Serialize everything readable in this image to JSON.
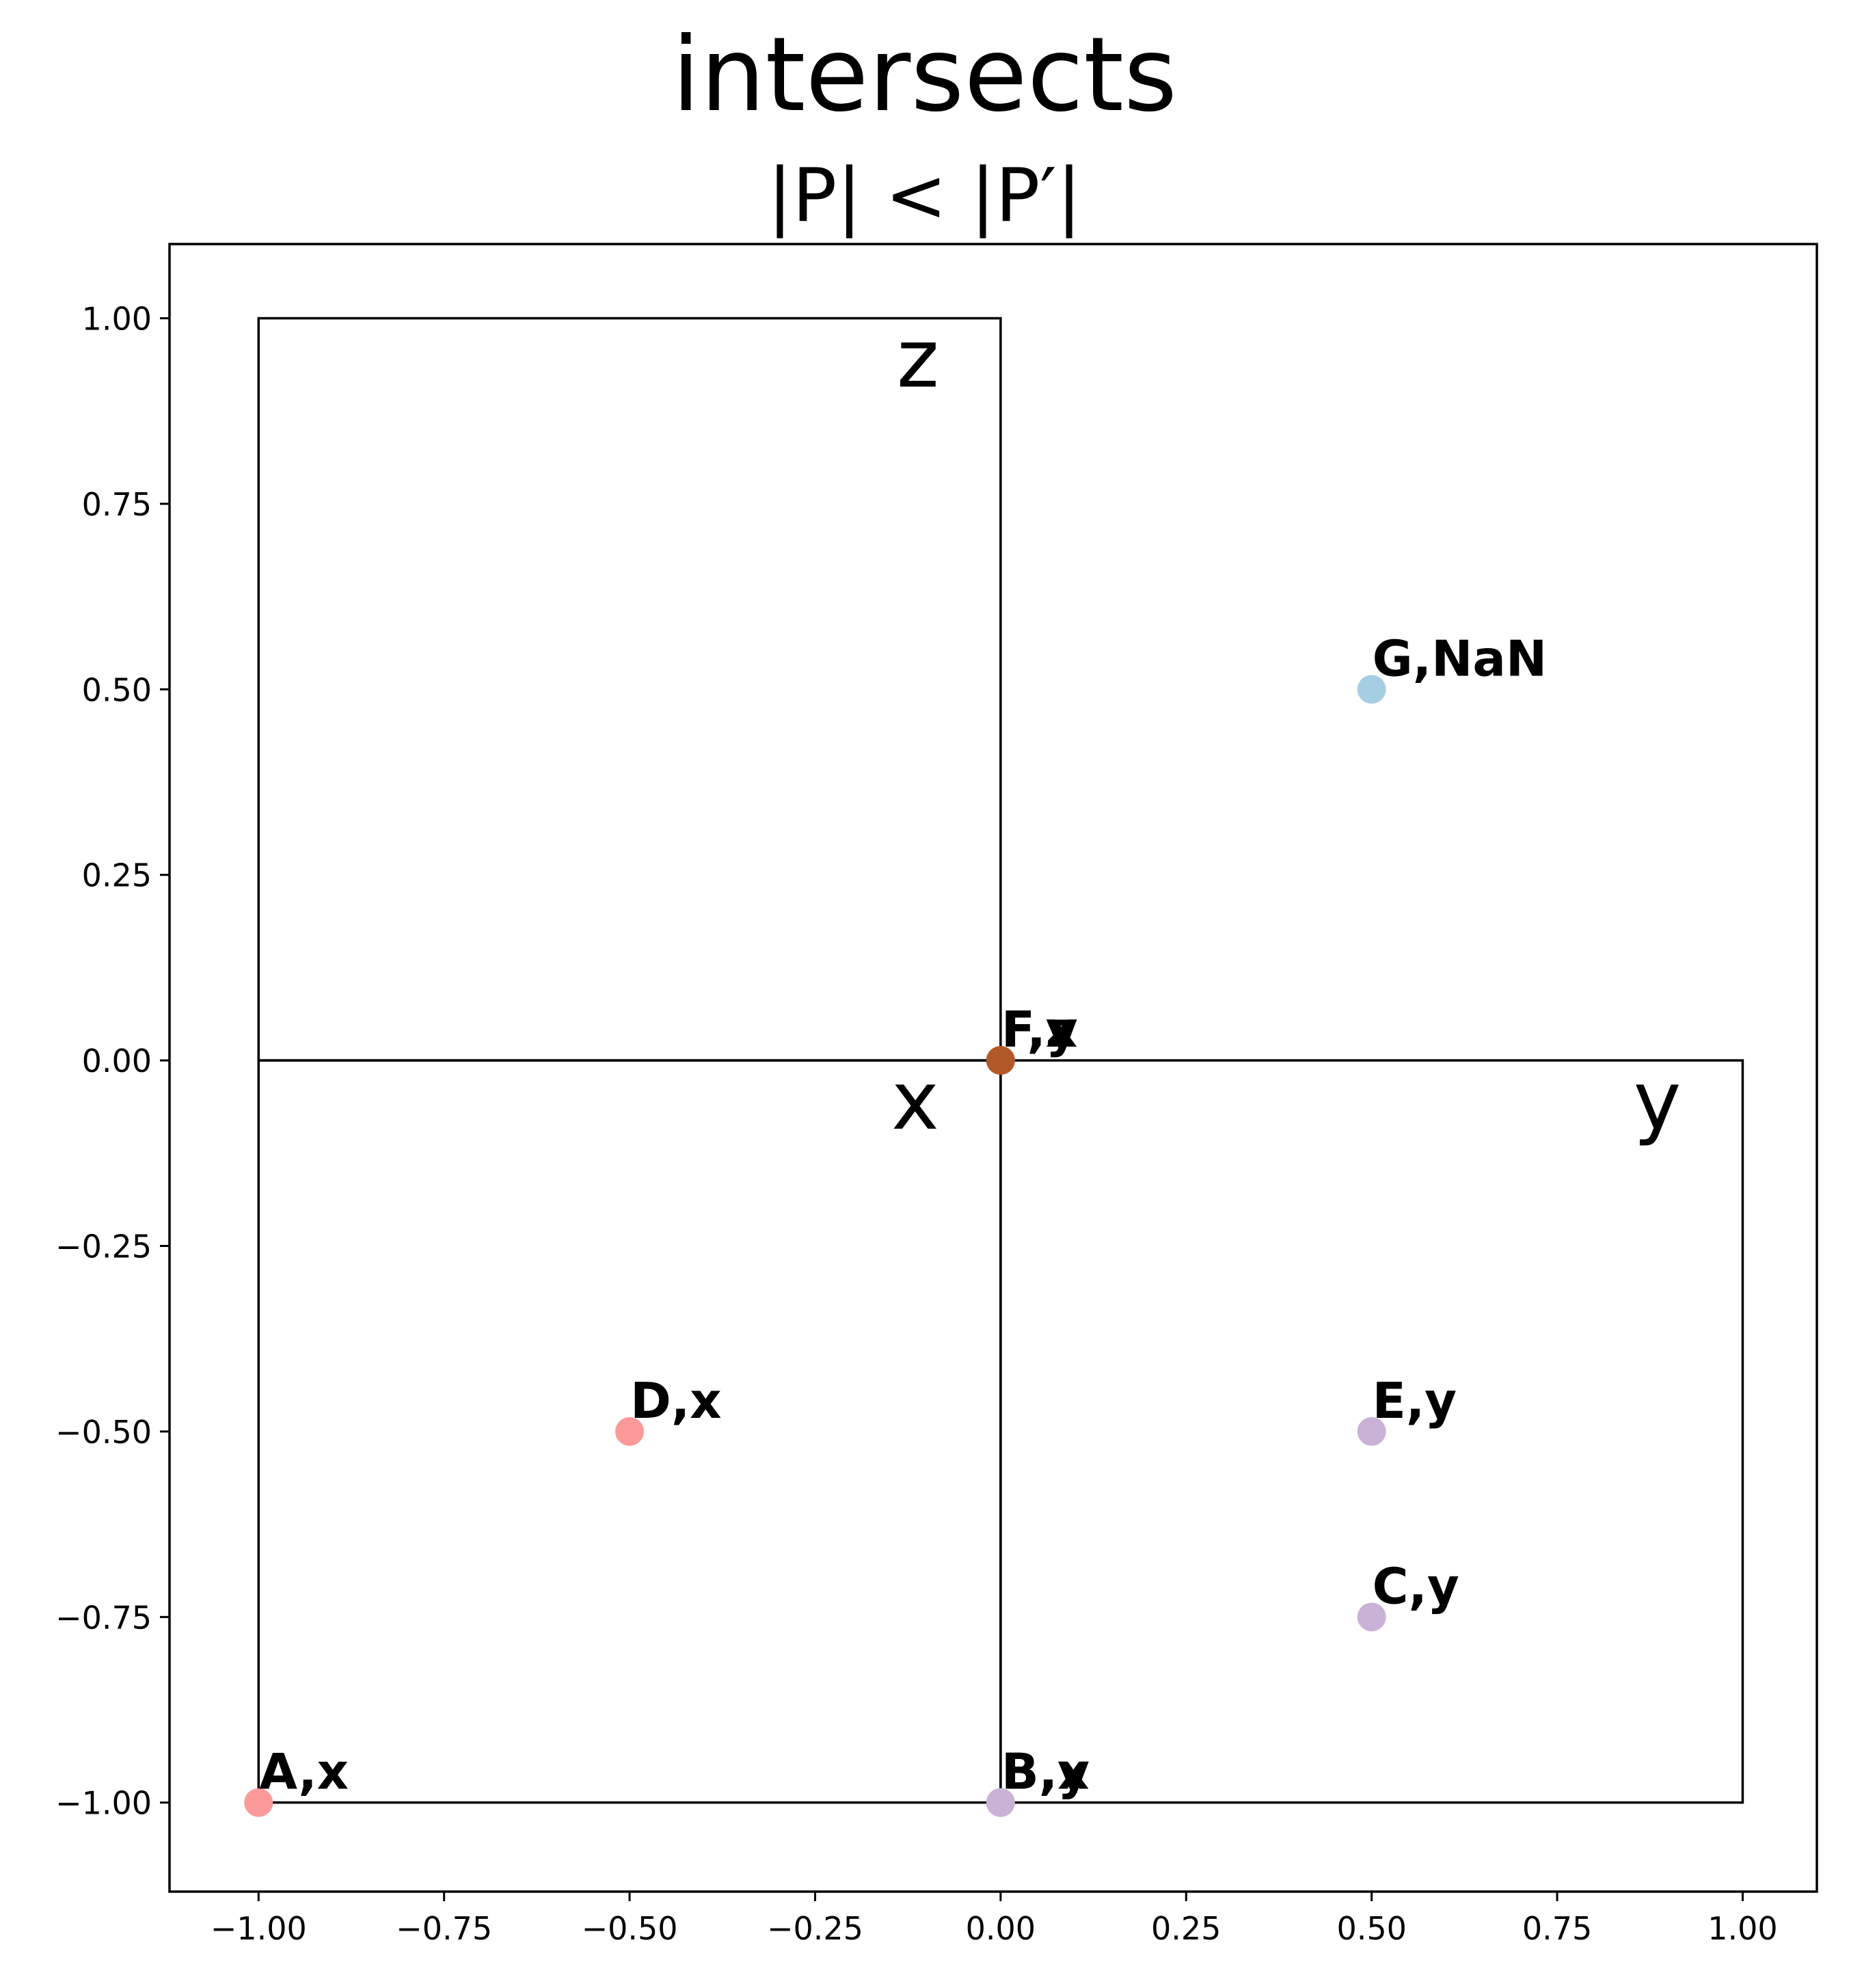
{
  "chart_data": {
    "type": "scatter",
    "title": "intersects",
    "subtitle": "|P| < |P′|",
    "xlabel": "",
    "ylabel": "",
    "xlim": [
      -1.12,
      1.1
    ],
    "ylim": [
      -1.12,
      1.1
    ],
    "grid": false,
    "x_ticks": [
      "−1.00",
      "−0.75",
      "−0.50",
      "−0.25",
      "0.00",
      "0.25",
      "0.50",
      "0.75",
      "1.00"
    ],
    "x_tick_values": [
      -1.0,
      -0.75,
      -0.5,
      -0.25,
      0.0,
      0.25,
      0.5,
      0.75,
      1.0
    ],
    "y_ticks": [
      "1.00",
      "0.75",
      "0.50",
      "0.25",
      "0.00",
      "−0.25",
      "−0.50",
      "−0.75",
      "−1.00"
    ],
    "y_tick_values": [
      1.0,
      0.75,
      0.5,
      0.25,
      0.0,
      -0.25,
      -0.5,
      -0.75,
      -1.0
    ],
    "regions": [
      {
        "name": "z",
        "x0": -1.0,
        "y0": 0.0,
        "x1": 0.0,
        "y1": 1.0
      },
      {
        "name": "x",
        "x0": -1.0,
        "y0": -1.0,
        "x1": 0.0,
        "y1": 0.0
      },
      {
        "name": "y",
        "x0": 0.0,
        "y0": -1.0,
        "x1": 1.0,
        "y1": 0.0
      }
    ],
    "points": [
      {
        "label": "A,x",
        "x": -1.0,
        "y": -1.0,
        "color": "#fb9a99"
      },
      {
        "label": "B,x",
        "x": 0.0,
        "y": -1.0,
        "color": "#cab2d6"
      },
      {
        "label": "B,y",
        "x": 0.0,
        "y": -1.0,
        "color": "#cab2d6"
      },
      {
        "label": "C,y",
        "x": 0.5,
        "y": -0.75,
        "color": "#cab2d6"
      },
      {
        "label": "D,x",
        "x": -0.5,
        "y": -0.5,
        "color": "#fb9a99"
      },
      {
        "label": "E,y",
        "x": 0.5,
        "y": -0.5,
        "color": "#cab2d6"
      },
      {
        "label": "F,x",
        "x": 0.0,
        "y": 0.0,
        "color": "#b15928"
      },
      {
        "label": "F,y",
        "x": 0.0,
        "y": 0.0,
        "color": "#b15928"
      },
      {
        "label": "F,z",
        "x": 0.0,
        "y": 0.0,
        "color": "#b15928"
      },
      {
        "label": "G,NaN",
        "x": 0.5,
        "y": 0.5,
        "color": "#a6cee3"
      }
    ]
  }
}
